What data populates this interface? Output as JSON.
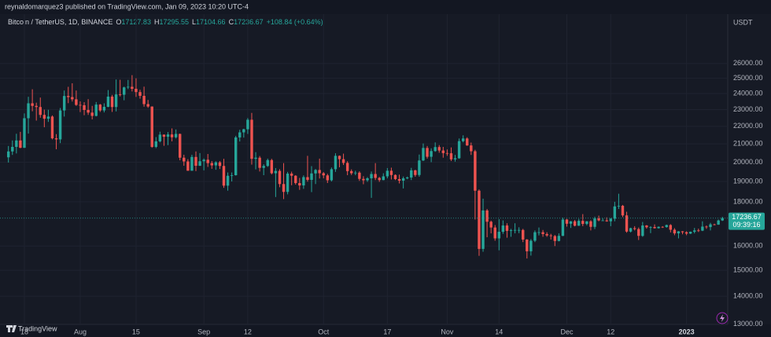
{
  "header": {
    "publisher": "reynaldomarquez3 published on TradingView.com, Jan 09, 2023 10:20 UTC-4",
    "footer": "TradingView"
  },
  "chart_data": {
    "type": "candlestick",
    "title": "Bitcoin / TetherUS, 1D, BINANCE",
    "ohlc_labels": [
      "O",
      "H",
      "L",
      "C"
    ],
    "change": "+108.84 (+0.64%)",
    "y_axis_label": "USDT",
    "countdown": "09:39:16",
    "log_scale": true,
    "grid": true,
    "up_color": "#26a69a",
    "down_color": "#ef5350",
    "ylim": [
      12990,
      29650
    ],
    "yticks": [
      {
        "value": 13000,
        "label": "13000.00"
      },
      {
        "value": 14000,
        "label": "14000.00"
      },
      {
        "value": 15000,
        "label": "15000.00"
      },
      {
        "value": 16000,
        "label": "16000.00"
      },
      {
        "value": 18000,
        "label": "18000.00"
      },
      {
        "value": 19000,
        "label": "19000.00"
      },
      {
        "value": 20000,
        "label": "20000.00"
      },
      {
        "value": 21000,
        "label": "21000.00"
      },
      {
        "value": 22000,
        "label": "22000.00"
      },
      {
        "value": 23000,
        "label": "23000.00"
      },
      {
        "value": 24000,
        "label": "24000.00"
      },
      {
        "value": 25000,
        "label": "25000.00"
      },
      {
        "value": 26000,
        "label": "26000.00"
      }
    ],
    "categories": [
      null,
      null,
      null,
      null,
      "18",
      null,
      null,
      null,
      null,
      null,
      null,
      null,
      null,
      null,
      null,
      null,
      null,
      null,
      "Aug",
      null,
      null,
      null,
      null,
      null,
      null,
      null,
      null,
      null,
      null,
      null,
      null,
      null,
      "15",
      null,
      null,
      null,
      null,
      null,
      null,
      null,
      null,
      null,
      null,
      null,
      null,
      null,
      null,
      null,
      null,
      "Sep",
      null,
      null,
      null,
      null,
      null,
      null,
      null,
      null,
      null,
      null,
      "12",
      null,
      null,
      null,
      null,
      null,
      null,
      null,
      null,
      null,
      null,
      null,
      null,
      null,
      null,
      null,
      null,
      null,
      null,
      "Oct",
      null,
      null,
      null,
      null,
      null,
      null,
      null,
      null,
      null,
      null,
      null,
      null,
      null,
      null,
      null,
      "17",
      null,
      null,
      null,
      null,
      null,
      null,
      null,
      null,
      null,
      null,
      null,
      null,
      null,
      null,
      "Nov",
      null,
      null,
      null,
      null,
      null,
      null,
      null,
      null,
      null,
      null,
      null,
      null,
      "14",
      null,
      null,
      null,
      null,
      null,
      null,
      null,
      null,
      null,
      null,
      null,
      null,
      null,
      null,
      null,
      null,
      "Dec",
      null,
      null,
      null,
      null,
      null,
      null,
      null,
      null,
      null,
      null,
      "12",
      null,
      null,
      null,
      null,
      null,
      null,
      null,
      null,
      null,
      null,
      null,
      null,
      null,
      null,
      null,
      null,
      null,
      null,
      "2023",
      null,
      null,
      null,
      null,
      null,
      null,
      null,
      null
    ],
    "ohlc": [
      [
        20260,
        20880,
        19980,
        20580
      ],
      [
        20580,
        21190,
        20390,
        20830
      ],
      [
        20830,
        21570,
        20470,
        21190
      ],
      [
        21190,
        21680,
        20760,
        20780
      ],
      [
        20780,
        22770,
        20770,
        22480
      ],
      [
        22480,
        23800,
        21580,
        23390
      ],
      [
        23390,
        24280,
        22900,
        23230
      ],
      [
        23230,
        23430,
        22340,
        23160
      ],
      [
        23160,
        23750,
        22510,
        22680
      ],
      [
        22680,
        23000,
        21950,
        22450
      ],
      [
        22450,
        22990,
        22260,
        22580
      ],
      [
        22580,
        22650,
        21250,
        21310
      ],
      [
        21310,
        21550,
        20700,
        21250
      ],
      [
        21250,
        23100,
        21040,
        22950
      ],
      [
        22950,
        24200,
        22580,
        23850
      ],
      [
        23850,
        24440,
        23400,
        23780
      ],
      [
        23780,
        24670,
        23500,
        23640
      ],
      [
        23640,
        24200,
        23230,
        23290
      ],
      [
        23290,
        23510,
        22850,
        23270
      ],
      [
        23270,
        23460,
        22660,
        22980
      ],
      [
        22980,
        23650,
        22680,
        22820
      ],
      [
        22820,
        23230,
        22410,
        22620
      ],
      [
        22620,
        23470,
        22590,
        23310
      ],
      [
        23310,
        23350,
        22860,
        22950
      ],
      [
        22950,
        23390,
        22830,
        23170
      ],
      [
        23170,
        24230,
        23150,
        23810
      ],
      [
        23810,
        23920,
        22860,
        23160
      ],
      [
        23160,
        24920,
        22890,
        23950
      ],
      [
        23950,
        24900,
        23820,
        23930
      ],
      [
        23930,
        24450,
        23580,
        24400
      ],
      [
        24400,
        24890,
        24290,
        24440
      ],
      [
        24440,
        25210,
        24140,
        24310
      ],
      [
        24310,
        25000,
        23790,
        24100
      ],
      [
        24100,
        24250,
        23680,
        23860
      ],
      [
        23860,
        24450,
        23180,
        23340
      ],
      [
        23340,
        23600,
        23110,
        23190
      ],
      [
        23190,
        23200,
        20780,
        20830
      ],
      [
        20830,
        21380,
        20760,
        21140
      ],
      [
        21140,
        21690,
        21080,
        21520
      ],
      [
        21520,
        21530,
        20890,
        21400
      ],
      [
        21400,
        21670,
        20930,
        21530
      ],
      [
        21530,
        21880,
        21140,
        21370
      ],
      [
        21370,
        21820,
        21300,
        21560
      ],
      [
        21560,
        21580,
        20100,
        20240
      ],
      [
        20240,
        20400,
        19810,
        20040
      ],
      [
        20040,
        20160,
        19550,
        19550
      ],
      [
        19550,
        20400,
        19550,
        20280
      ],
      [
        20280,
        20580,
        19530,
        19810
      ],
      [
        19810,
        20490,
        19800,
        20050
      ],
      [
        20050,
        20200,
        19570,
        20130
      ],
      [
        20130,
        20440,
        19750,
        19950
      ],
      [
        19950,
        20060,
        19650,
        19830
      ],
      [
        19830,
        20050,
        19600,
        19990
      ],
      [
        19990,
        20060,
        19640,
        19800
      ],
      [
        19800,
        20180,
        18680,
        18790
      ],
      [
        18790,
        19460,
        18540,
        19290
      ],
      [
        19290,
        19460,
        19000,
        19320
      ],
      [
        19320,
        21450,
        19300,
        21360
      ],
      [
        21360,
        21800,
        21130,
        21650
      ],
      [
        21650,
        21860,
        21350,
        21830
      ],
      [
        21830,
        22490,
        21560,
        22390
      ],
      [
        22390,
        22800,
        19870,
        20180
      ],
      [
        20180,
        20540,
        19620,
        20240
      ],
      [
        20240,
        20330,
        19510,
        19700
      ],
      [
        19700,
        19890,
        19320,
        19800
      ],
      [
        19800,
        20190,
        19750,
        20110
      ],
      [
        20110,
        20180,
        19360,
        19420
      ],
      [
        19420,
        19690,
        18230,
        19540
      ],
      [
        19540,
        19630,
        18710,
        18870
      ],
      [
        18870,
        19950,
        18130,
        18480
      ],
      [
        18480,
        19490,
        18360,
        19400
      ],
      [
        19400,
        19500,
        18810,
        19290
      ],
      [
        19290,
        19320,
        18840,
        18920
      ],
      [
        18920,
        19180,
        18580,
        18800
      ],
      [
        18800,
        19310,
        18630,
        19220
      ],
      [
        19220,
        20340,
        18990,
        19080
      ],
      [
        19080,
        19790,
        18470,
        19410
      ],
      [
        19410,
        19640,
        18870,
        19590
      ],
      [
        19590,
        20190,
        19150,
        19420
      ],
      [
        19420,
        19480,
        19160,
        19310
      ],
      [
        19310,
        19390,
        18920,
        19060
      ],
      [
        19060,
        19720,
        19000,
        19630
      ],
      [
        19630,
        20480,
        19490,
        20340
      ],
      [
        20340,
        20360,
        19730,
        20160
      ],
      [
        20160,
        20460,
        19850,
        19960
      ],
      [
        19960,
        20050,
        19320,
        19530
      ],
      [
        19530,
        19620,
        19330,
        19420
      ],
      [
        19420,
        19550,
        19320,
        19450
      ],
      [
        19450,
        19520,
        19030,
        19130
      ],
      [
        19130,
        19270,
        18860,
        19060
      ],
      [
        19060,
        19220,
        18980,
        19160
      ],
      [
        19160,
        19510,
        18190,
        19380
      ],
      [
        19380,
        19950,
        19070,
        19180
      ],
      [
        19180,
        19230,
        18980,
        19070
      ],
      [
        19070,
        19420,
        19060,
        19260
      ],
      [
        19260,
        19690,
        19160,
        19550
      ],
      [
        19550,
        19710,
        19100,
        19330
      ],
      [
        19330,
        19360,
        19070,
        19120
      ],
      [
        19120,
        19350,
        18900,
        19040
      ],
      [
        19040,
        19250,
        18650,
        19160
      ],
      [
        19160,
        19250,
        19110,
        19200
      ],
      [
        19200,
        19700,
        19070,
        19570
      ],
      [
        19570,
        19600,
        19240,
        19330
      ],
      [
        19330,
        20410,
        19240,
        20090
      ],
      [
        20090,
        21020,
        20060,
        20770
      ],
      [
        20770,
        20880,
        20190,
        20290
      ],
      [
        20290,
        20750,
        20000,
        20600
      ],
      [
        20600,
        21080,
        20560,
        20820
      ],
      [
        20820,
        20930,
        20510,
        20630
      ],
      [
        20630,
        20830,
        20240,
        20490
      ],
      [
        20490,
        20690,
        20340,
        20480
      ],
      [
        20480,
        20800,
        20060,
        20150
      ],
      [
        20150,
        20390,
        20030,
        20210
      ],
      [
        20210,
        21300,
        20180,
        21150
      ],
      [
        21150,
        21480,
        21080,
        21300
      ],
      [
        21300,
        21370,
        20890,
        20910
      ],
      [
        20910,
        21070,
        20390,
        20590
      ],
      [
        20590,
        20670,
        17170,
        18540
      ],
      [
        18540,
        18600,
        15590,
        15880
      ],
      [
        15880,
        18150,
        15760,
        17590
      ],
      [
        17590,
        17660,
        16380,
        17070
      ],
      [
        17070,
        17120,
        16550,
        16810
      ],
      [
        16810,
        16920,
        16230,
        16330
      ],
      [
        16330,
        17190,
        15820,
        16620
      ],
      [
        16620,
        17130,
        16530,
        16900
      ],
      [
        16900,
        17000,
        16360,
        16660
      ],
      [
        16660,
        16750,
        16400,
        16690
      ],
      [
        16690,
        17000,
        16550,
        16700
      ],
      [
        16700,
        16820,
        16560,
        16700
      ],
      [
        16700,
        16750,
        16170,
        16280
      ],
      [
        16280,
        16300,
        15480,
        15780
      ],
      [
        15780,
        16300,
        15600,
        16230
      ],
      [
        16230,
        16680,
        16170,
        16600
      ],
      [
        16600,
        16810,
        16460,
        16600
      ],
      [
        16600,
        16700,
        16400,
        16520
      ],
      [
        16520,
        16600,
        16400,
        16460
      ],
      [
        16460,
        16530,
        16280,
        16430
      ],
      [
        16430,
        16480,
        16000,
        16220
      ],
      [
        16220,
        16550,
        16200,
        16440
      ],
      [
        16440,
        17250,
        16430,
        17170
      ],
      [
        17170,
        17200,
        16850,
        16980
      ],
      [
        16980,
        17100,
        16790,
        17090
      ],
      [
        17090,
        17150,
        16860,
        16890
      ],
      [
        16890,
        17200,
        16880,
        17110
      ],
      [
        17110,
        17420,
        16870,
        16970
      ],
      [
        16970,
        17100,
        16910,
        17090
      ],
      [
        17090,
        17140,
        16680,
        16840
      ],
      [
        16840,
        17300,
        16740,
        17220
      ],
      [
        17220,
        17350,
        17090,
        17130
      ],
      [
        17130,
        17230,
        17110,
        17130
      ],
      [
        17130,
        17270,
        17070,
        17090
      ],
      [
        17090,
        17240,
        16870,
        17210
      ],
      [
        17210,
        18000,
        17090,
        17780
      ],
      [
        17780,
        18390,
        17660,
        17810
      ],
      [
        17810,
        17850,
        17280,
        17360
      ],
      [
        17360,
        17530,
        16580,
        16630
      ],
      [
        16630,
        16800,
        16590,
        16780
      ],
      [
        16780,
        16870,
        16680,
        16740
      ],
      [
        16740,
        16810,
        16260,
        16440
      ],
      [
        16440,
        17060,
        16400,
        16900
      ],
      [
        16900,
        16920,
        16760,
        16820
      ],
      [
        16820,
        16870,
        16560,
        16830
      ],
      [
        16830,
        16950,
        16760,
        16780
      ],
      [
        16780,
        16860,
        16760,
        16840
      ],
      [
        16840,
        16870,
        16790,
        16830
      ],
      [
        16830,
        16940,
        16800,
        16920
      ],
      [
        16920,
        16960,
        16590,
        16710
      ],
      [
        16710,
        16780,
        16470,
        16550
      ],
      [
        16550,
        16650,
        16330,
        16640
      ],
      [
        16640,
        16650,
        16510,
        16600
      ],
      [
        16600,
        16640,
        16470,
        16540
      ],
      [
        16540,
        16630,
        16520,
        16620
      ],
      [
        16620,
        16790,
        16550,
        16680
      ],
      [
        16680,
        16760,
        16610,
        16670
      ],
      [
        16670,
        17090,
        16650,
        16850
      ],
      [
        16850,
        16900,
        16750,
        16830
      ],
      [
        16830,
        17020,
        16680,
        16950
      ],
      [
        16950,
        16980,
        16910,
        16940
      ],
      [
        16940,
        17170,
        16930,
        17127.83
      ],
      [
        17127.83,
        17295.55,
        17104.66,
        17236.67
      ]
    ]
  }
}
